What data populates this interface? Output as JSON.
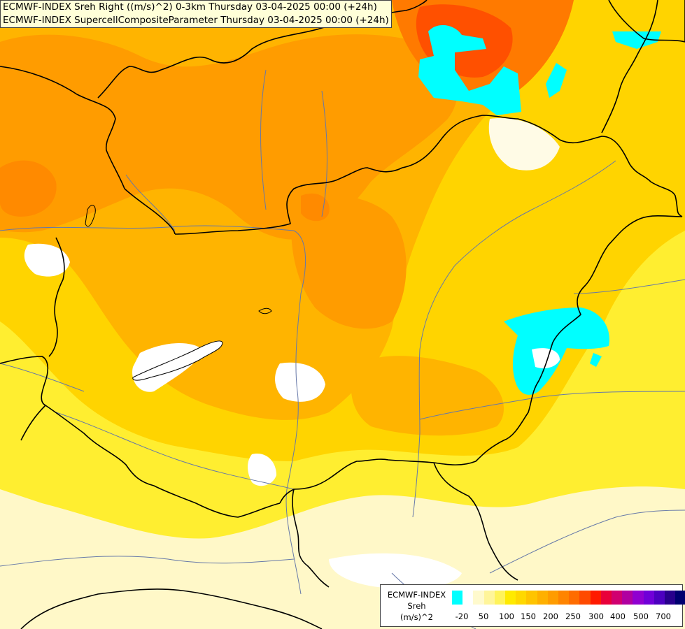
{
  "header": {
    "line1": "ECMWF-INDEX Sreh Right ((m/s)^2) 0-3km Thursday 03-04-2025 00:00 (+24h)",
    "line2": "ECMWF-INDEX SupercellCompositeParameter Thursday 03-04-2025 00:00 (+24h)"
  },
  "legend": {
    "title_line1": "ECMWF-INDEX",
    "title_line2": "Sreh",
    "title_line3": "(m/s)^2",
    "colors": [
      "#00ffff",
      "#ffffff",
      "#fffacd",
      "#fff59a",
      "#fff35a",
      "#ffea00",
      "#ffd800",
      "#ffc400",
      "#ffb000",
      "#ff9c00",
      "#ff8400",
      "#ff6c00",
      "#ff4a00",
      "#ff1a00",
      "#e8003a",
      "#d00070",
      "#b000a0",
      "#9000d0",
      "#7000d8",
      "#4c00c0",
      "#28008c",
      "#000070"
    ],
    "ticks": [
      "-20",
      "50",
      "100",
      "150",
      "200",
      "250",
      "300",
      "400",
      "500",
      "700"
    ]
  },
  "colors": {
    "light_yellow": "#fff8c8",
    "yellow": "#ffec1a",
    "gold": "#ffd000",
    "orange_light": "#ffb400",
    "orange": "#ff9c00",
    "orange_dark": "#ff7a00",
    "red_orange": "#ff5800",
    "cyan": "#00ffff",
    "border": "#000000",
    "river": "#6678a8"
  }
}
